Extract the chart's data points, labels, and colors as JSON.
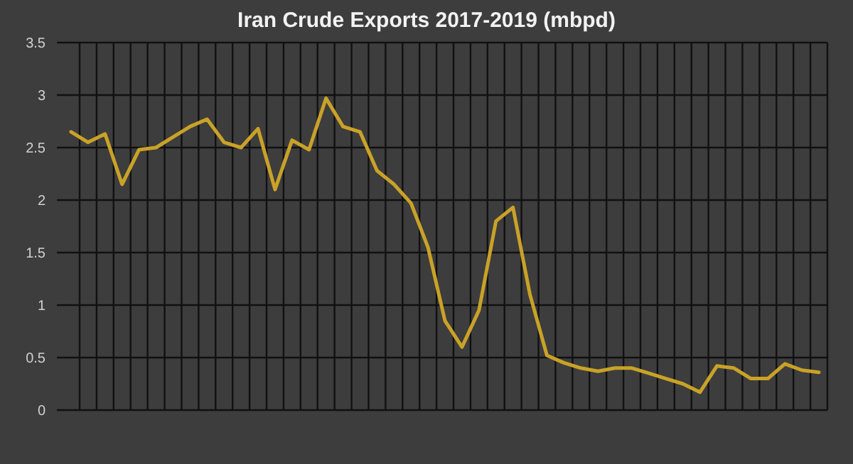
{
  "chart_data": {
    "type": "line",
    "title": "Iran Crude Exports 2017-2019 (mbpd)",
    "categories": [
      null,
      null,
      null,
      null,
      null,
      null,
      null,
      null,
      null,
      null,
      null,
      null,
      null,
      null,
      null,
      null,
      null,
      null,
      null,
      null,
      null,
      null,
      null,
      null,
      null,
      null,
      null,
      null,
      null,
      null,
      null,
      null,
      null,
      null,
      null,
      null,
      null,
      null,
      null,
      null,
      null,
      null,
      null,
      null,
      null
    ],
    "series": [
      {
        "color": "#c9a227",
        "values": [
          2.65,
          2.55,
          2.63,
          2.15,
          2.48,
          2.5,
          2.6,
          2.7,
          2.77,
          2.55,
          2.5,
          2.68,
          2.1,
          2.57,
          2.48,
          2.97,
          2.7,
          2.65,
          2.28,
          2.15,
          1.97,
          1.55,
          0.85,
          0.6,
          0.95,
          1.8,
          1.93,
          1.1,
          0.52,
          0.45,
          0.4,
          0.37,
          0.4,
          0.4,
          0.35,
          0.3,
          0.25,
          0.17,
          0.42,
          0.4,
          0.3,
          0.3,
          0.44,
          0.38,
          0.36
        ]
      }
    ],
    "ylim": [
      0,
      3.5
    ],
    "yticks": [
      0,
      0.5,
      1,
      1.5,
      2,
      2.5,
      3,
      3.5
    ],
    "grid": true,
    "marker": "none",
    "line_style": "solid"
  }
}
